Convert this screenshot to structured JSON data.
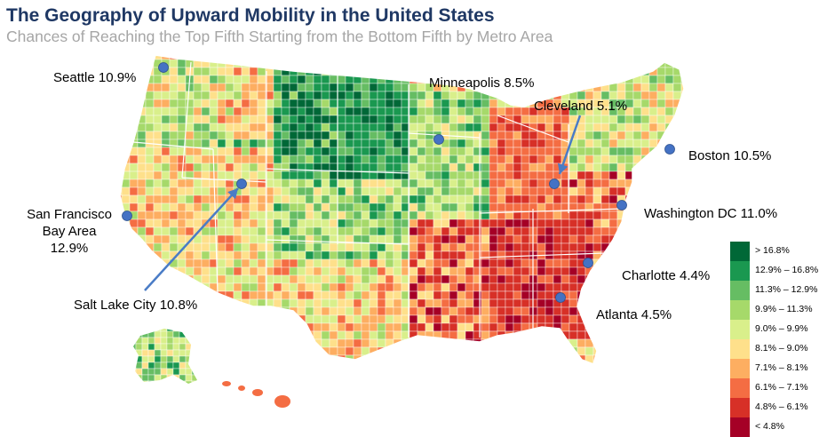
{
  "header": {
    "title": "The Geography of Upward Mobility in the United States",
    "subtitle": "Chances of Reaching the Top Fifth Starting from the Bottom Fifth by Metro Area"
  },
  "cities": [
    {
      "id": "seattle",
      "label": "Seattle 10.9%",
      "value": 10.9
    },
    {
      "id": "minneapolis",
      "label": "Minneapolis 8.5%",
      "value": 8.5
    },
    {
      "id": "cleveland",
      "label": "Cleveland 5.1%",
      "value": 5.1
    },
    {
      "id": "boston",
      "label": "Boston 10.5%",
      "value": 10.5
    },
    {
      "id": "san-francisco",
      "label_lines": [
        "San Francisco",
        "Bay Area",
        "12.9%"
      ],
      "value": 12.9
    },
    {
      "id": "washington-dc",
      "label": "Washington DC 11.0%",
      "value": 11.0
    },
    {
      "id": "charlotte",
      "label": "Charlotte 4.4%",
      "value": 4.4
    },
    {
      "id": "salt-lake-city",
      "label": "Salt Lake City 10.8%",
      "value": 10.8
    },
    {
      "id": "atlanta",
      "label": "Atlanta 4.5%",
      "value": 4.5
    }
  ],
  "legend": {
    "items": [
      {
        "label": "> 16.8%",
        "color": "#006837"
      },
      {
        "label": "12.9% – 16.8%",
        "color": "#1a9850"
      },
      {
        "label": "11.3% – 12.9%",
        "color": "#66bd63"
      },
      {
        "label": "9.9% – 11.3%",
        "color": "#a6d96a"
      },
      {
        "label": "9.0% – 9.9%",
        "color": "#d9ef8b"
      },
      {
        "label": "8.1% – 9.0%",
        "color": "#fee08b"
      },
      {
        "label": "7.1% – 8.1%",
        "color": "#fdae61"
      },
      {
        "label": "6.1% – 7.1%",
        "color": "#f46d43"
      },
      {
        "label": "4.8% – 6.1%",
        "color": "#d73027"
      },
      {
        "label": "< 4.8%",
        "color": "#a50026"
      }
    ]
  },
  "colors": {
    "marker": "#4472c4",
    "arrow": "#4a7cc6",
    "title": "#1f3864",
    "subtitle": "#a6a6a6"
  }
}
